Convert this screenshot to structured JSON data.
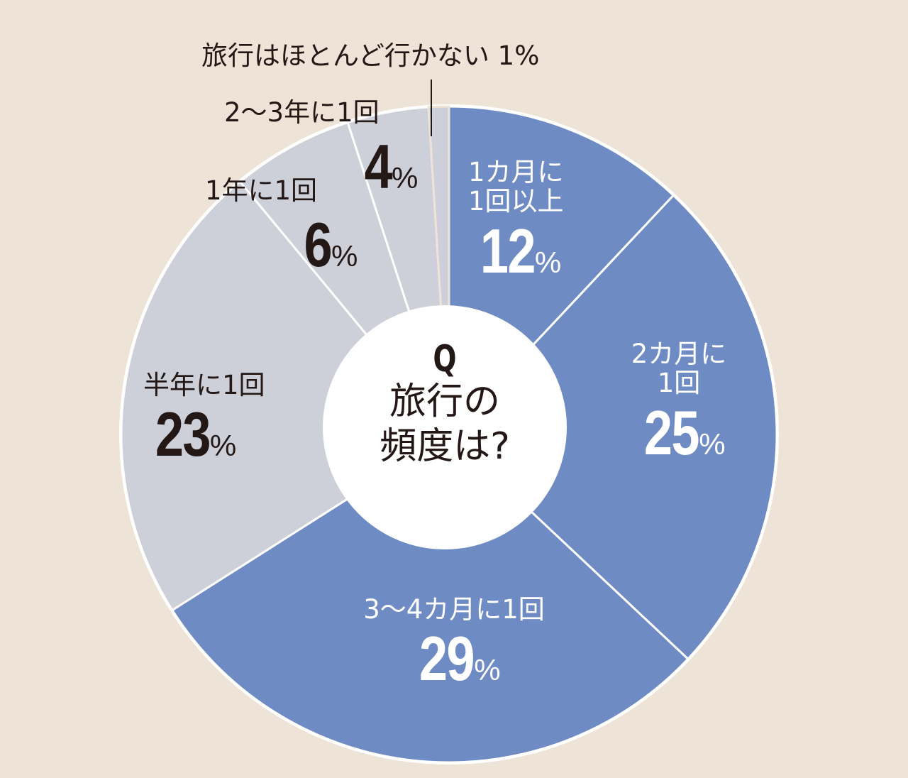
{
  "chart_data": {
    "type": "pie",
    "title": "Q 旅行の頻度は?",
    "donut": true,
    "start_angle_deg": 0,
    "direction": "clockwise",
    "categories": [
      "1カ月に1回以上",
      "2カ月に1回",
      "3〜4カ月に1回",
      "半年に1回",
      "1年に1回",
      "2〜3年に1回",
      "旅行はほとんど行かない"
    ],
    "values": [
      12,
      25,
      29,
      23,
      6,
      4,
      1
    ],
    "unit": "%",
    "colors": [
      "#6f8bc4",
      "#6f8bc4",
      "#6f8bc4",
      "#cdcfd9",
      "#cdcfd9",
      "#cdcfd9",
      "#cdcfd9"
    ]
  },
  "center": {
    "q": "Q",
    "line1": "旅行の",
    "line2": "頻度は?"
  },
  "labels": [
    {
      "text1": "1カ月に",
      "text2": "1回以上",
      "num": "12",
      "pct": "%"
    },
    {
      "text1": "2カ月に",
      "text2": "1回",
      "num": "25",
      "pct": "%"
    },
    {
      "text1": "3〜4カ月に1回",
      "num": "29",
      "pct": "%"
    },
    {
      "text1": "半年に1回",
      "num": "23",
      "pct": "%"
    },
    {
      "text1": "1年に1回",
      "num": "6",
      "pct": "%"
    },
    {
      "text1": "2〜3年に1回",
      "num": "4",
      "pct": "%"
    },
    {
      "text1": "旅行はほとんど行かない",
      "num": "1",
      "pct": "%"
    }
  ],
  "colors": {
    "background": "#ede3d6",
    "blue": "#6f8bc4",
    "gray": "#cdcfd9",
    "text_dark": "#231815",
    "separator": "#ffffff"
  }
}
